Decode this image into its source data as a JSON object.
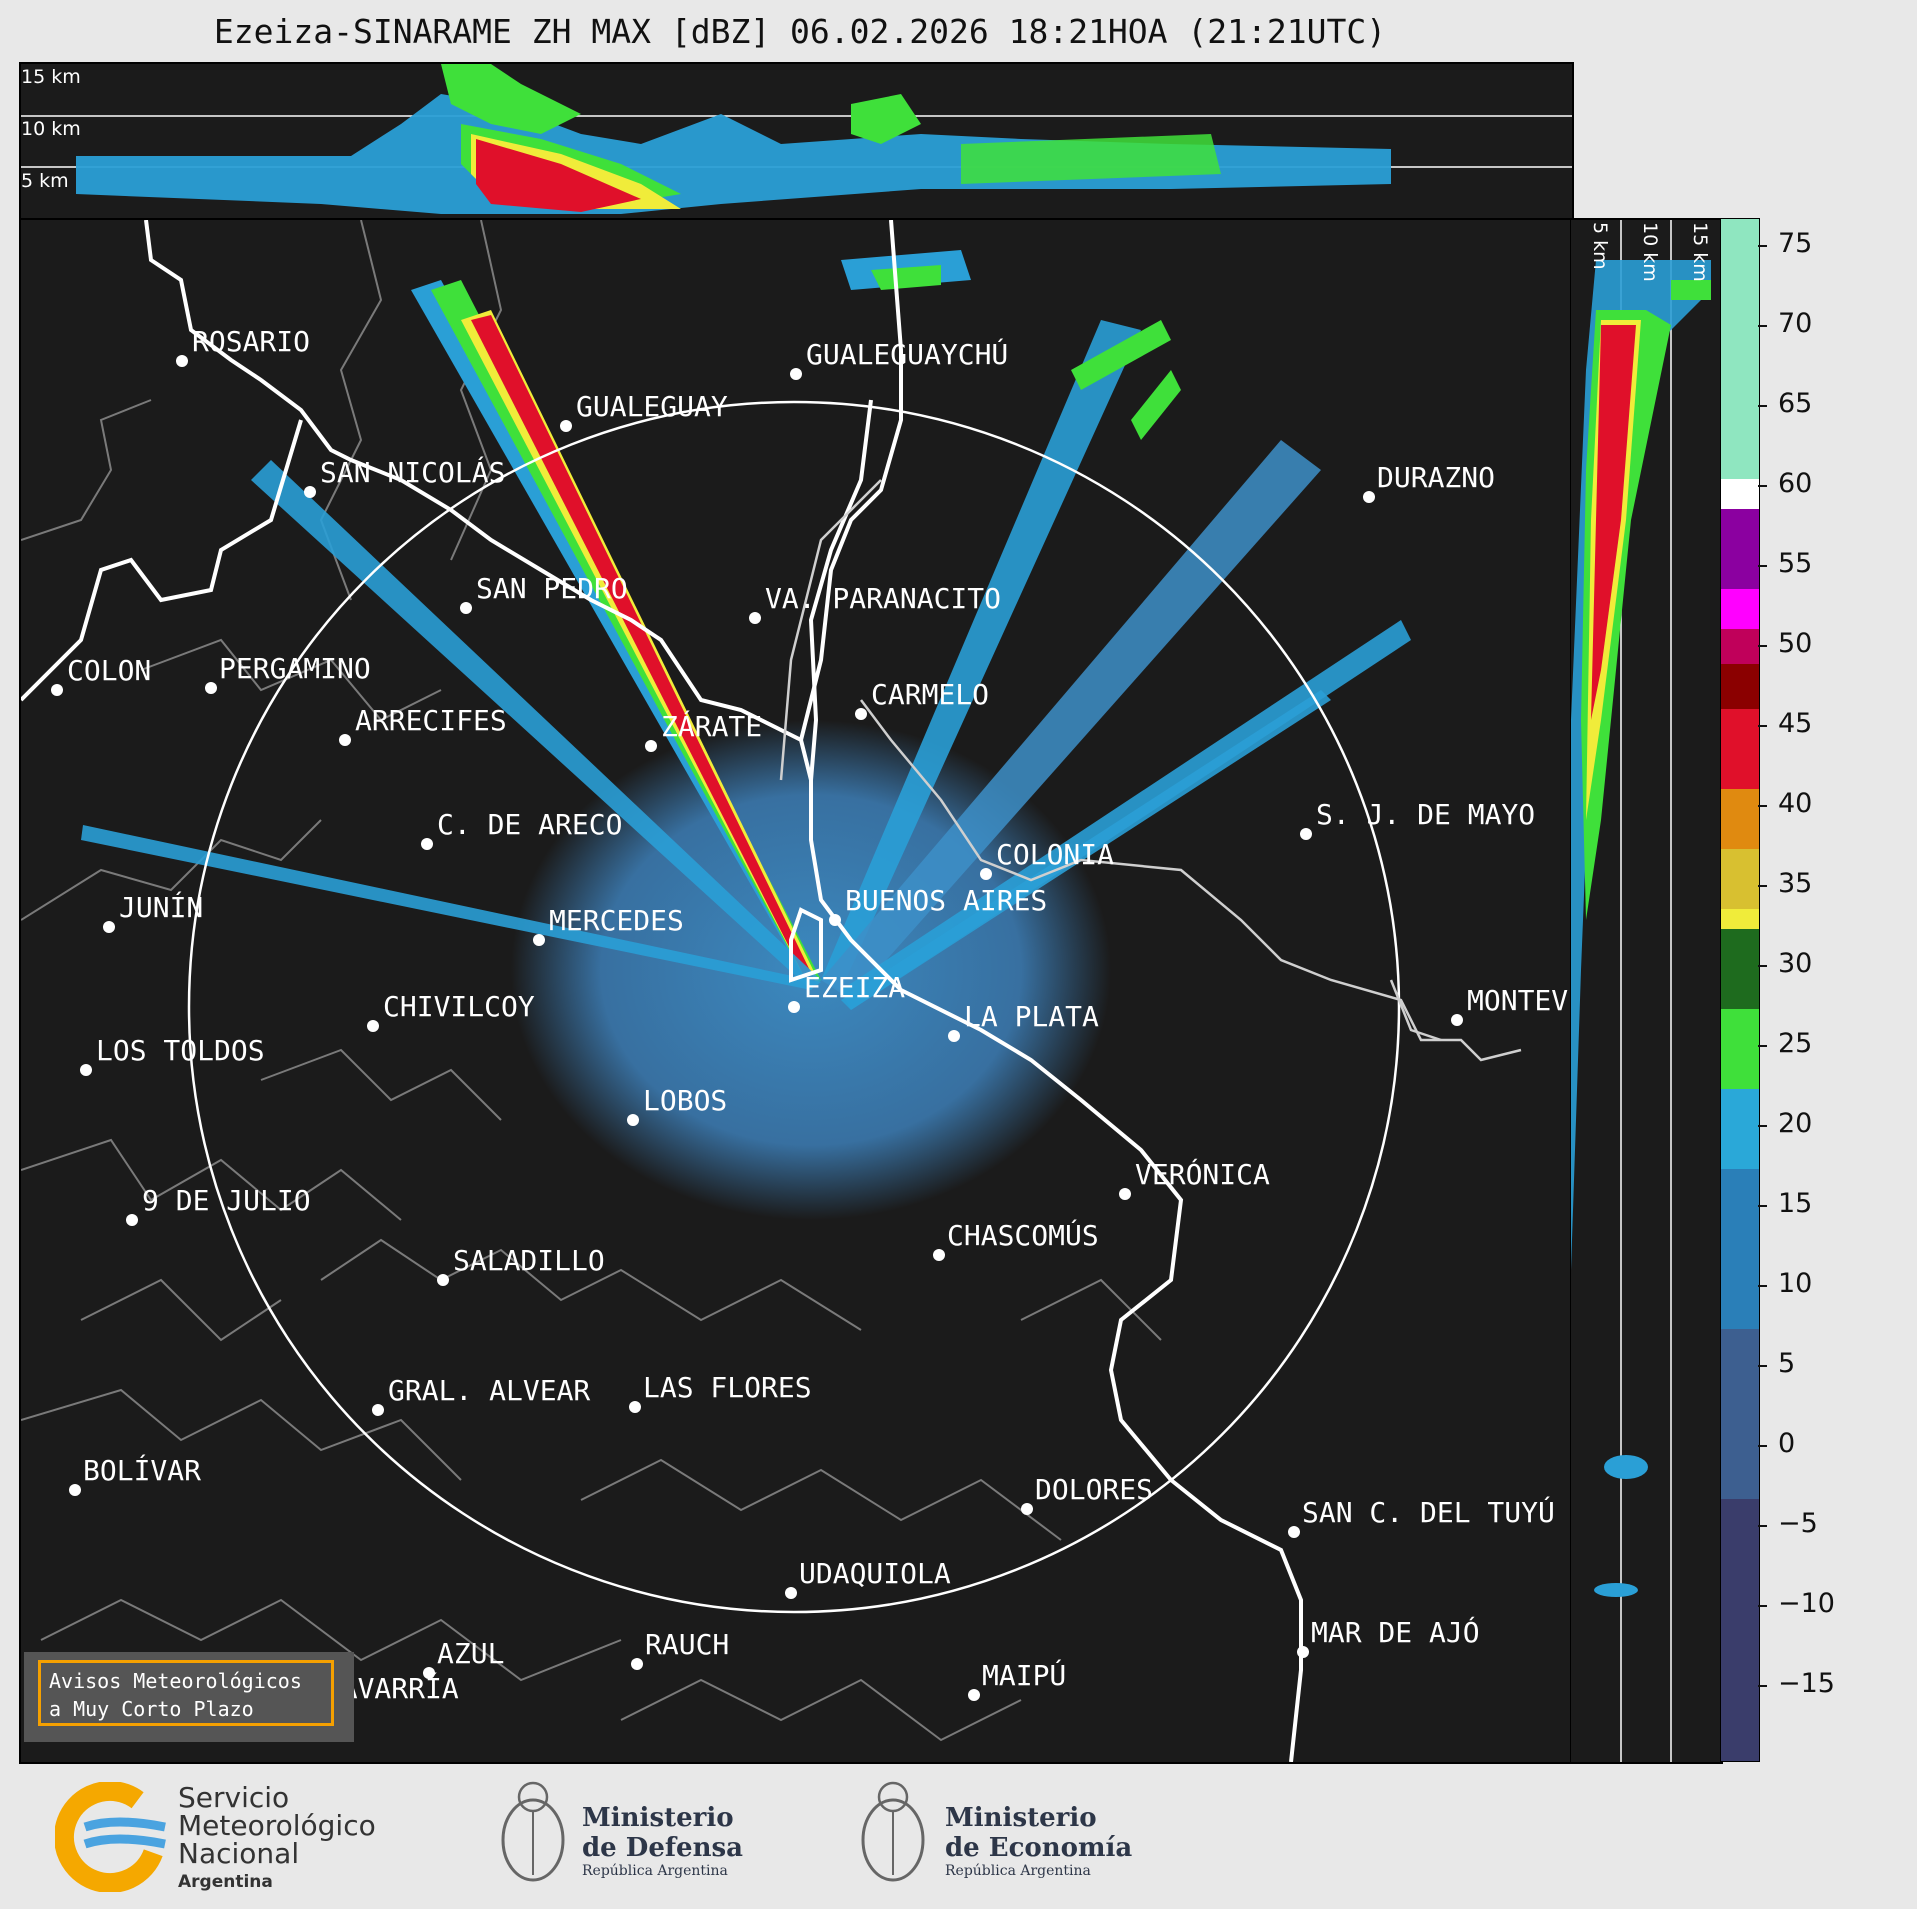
{
  "title": "Ezeiza-SINARAME ZH MAX [dBZ] 06.02.2026 18:21HOA (21:21UTC)",
  "height_labels": {
    "h15": "15 km",
    "h10": "10 km",
    "h5": "5 km"
  },
  "colorbar": {
    "ticks": [
      "75",
      "70",
      "65",
      "60",
      "55",
      "50",
      "45",
      "40",
      "35",
      "30",
      "25",
      "20",
      "15",
      "10",
      "5",
      "0",
      "−5",
      "−10",
      "−15"
    ],
    "colors": {
      "very_low": "#3a3d6b",
      "low": "#3d6fa0",
      "blue": "#2a9fd6",
      "green": "#3fe03a",
      "dark_green": "#1e6b1e",
      "yellow": "#f0ec3a",
      "orange": "#e08a10",
      "red": "#e0102a",
      "dark_red": "#8b0000",
      "magenta": "#ff00ff",
      "purple": "#8b00a0",
      "white": "#ffffff",
      "light_green": "#8fe6c0"
    }
  },
  "cities": [
    {
      "name": "ROSARIO"
    },
    {
      "name": "GUALEGUAYCHÚ"
    },
    {
      "name": "GUALEGUAY"
    },
    {
      "name": "SAN NICOLÁS"
    },
    {
      "name": "DURAZNO"
    },
    {
      "name": "SAN PEDRO"
    },
    {
      "name": "VA. PARANACITO"
    },
    {
      "name": "COLON"
    },
    {
      "name": "PERGAMINO"
    },
    {
      "name": "CARMELO"
    },
    {
      "name": "ARRECIFES"
    },
    {
      "name": "ZÁRATE"
    },
    {
      "name": "S. J. DE MAYO"
    },
    {
      "name": "C. DE ARECO"
    },
    {
      "name": "COLONIA"
    },
    {
      "name": "JUNÍN"
    },
    {
      "name": "BUENOS AIRES"
    },
    {
      "name": "MERCEDES"
    },
    {
      "name": "EZEIZA"
    },
    {
      "name": "MONTEVIDEO"
    },
    {
      "name": "CHIVILCOY"
    },
    {
      "name": "LA PLATA"
    },
    {
      "name": "LOS TOLDOS"
    },
    {
      "name": "LOBOS"
    },
    {
      "name": "VERÓNICA"
    },
    {
      "name": "9 DE JULIO"
    },
    {
      "name": "CHASCOMÚS"
    },
    {
      "name": "SALADILLO"
    },
    {
      "name": "GRAL. ALVEAR"
    },
    {
      "name": "LAS FLORES"
    },
    {
      "name": "BOLÍVAR"
    },
    {
      "name": "DOLORES"
    },
    {
      "name": "SAN C. DEL TUYÚ"
    },
    {
      "name": "UDAQUIOLA"
    },
    {
      "name": "AZUL"
    },
    {
      "name": "RAUCH"
    },
    {
      "name": "MAR DE AJÓ"
    },
    {
      "name": "OLAVARRÍA"
    },
    {
      "name": "MAIPÚ"
    }
  ],
  "notice": {
    "line1": "Avisos Meteorológicos",
    "line2": "a Muy Corto Plazo"
  },
  "logos": {
    "smn": {
      "line1": "Servicio",
      "line2": "Meteorológico",
      "line3": "Nacional",
      "line4": "Argentina"
    },
    "defensa": {
      "line1": "Ministerio",
      "line2": "de Defensa",
      "line3": "República Argentina"
    },
    "economia": {
      "line1": "Ministerio",
      "line2": "de Economía",
      "line3": "República Argentina"
    }
  }
}
